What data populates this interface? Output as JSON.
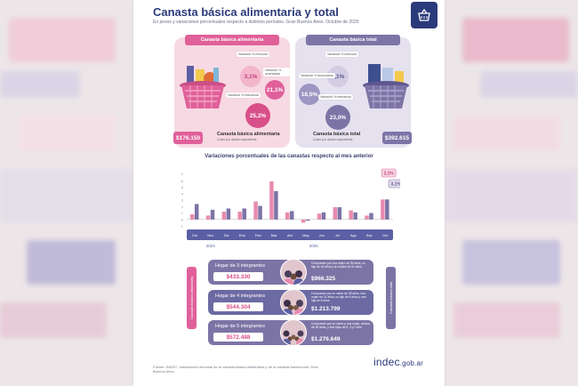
{
  "header": {
    "title": "Canasta básica alimentaria y total",
    "subtitle": "En pesos y variaciones porcentuales respecto a distintos períodos. Gran Buenos Aires. Octubre de 2025",
    "logo_icon": "basket-icon"
  },
  "panels": {
    "cba": {
      "heading": "Canasta básica alimentaria",
      "tag_monthly": "Variación % mensual",
      "tag_ytd": "Variación % acumulada",
      "tag_yoy": "Variación % interanual",
      "monthly": "3,1%",
      "ytd": "21,1%",
      "yoy": "25,2%",
      "value": "$176.150",
      "value_label": "Canasta básica alimentaria",
      "value_note": "Costo por adulto equivalente"
    },
    "cbt": {
      "heading": "Canasta básica total",
      "tag_monthly": "Variación % mensual",
      "tag_ytd": "Variación % acumulada",
      "tag_yoy": "Variación % interanual",
      "monthly": "3,1%",
      "ytd": "18,5%",
      "yoy": "23,0%",
      "value": "$392.615",
      "value_label": "Canasta básica total",
      "value_note": "Costo por adulto equivalente"
    }
  },
  "chart_data": {
    "type": "bar",
    "title": "Variaciones porcentuales de las canastas respecto al mes anterior",
    "categories": [
      "Oct",
      "Nov",
      "Dic",
      "Ene",
      "Feb",
      "Mar",
      "Abr",
      "May",
      "Jun",
      "Jul",
      "Ago",
      "Sep",
      "Oct"
    ],
    "year_labels": [
      "2024",
      "2025"
    ],
    "series": [
      {
        "name": "Canasta básica alimentaria",
        "color": "#e88bb0",
        "values": [
          0.8,
          0.6,
          1.2,
          1.2,
          2.8,
          5.9,
          1.1,
          -0.5,
          0.9,
          1.9,
          1.4,
          0.6,
          3.1
        ]
      },
      {
        "name": "Canasta básica total",
        "color": "#7d74a6",
        "values": [
          2.4,
          1.5,
          1.7,
          1.7,
          2.1,
          4.4,
          1.3,
          -0.2,
          1.1,
          1.9,
          1.1,
          1.0,
          3.1
        ]
      }
    ],
    "callouts": [
      "3,1%",
      "3,1%"
    ],
    "ylim": [
      -1,
      7
    ],
    "yticks": [
      "7",
      "6",
      "5",
      "4",
      "3",
      "2",
      "1",
      "0",
      "-1"
    ]
  },
  "households": {
    "side_left": "Canasta básica alimentaria",
    "side_right": "Canasta básica total",
    "items": [
      {
        "name": "Hogar de 3 integrantes",
        "cba": "$433.330",
        "cbt": "$966.325",
        "desc": "Compuesto por una mujer de 35 años, su hijo de 18 años y su madre de 61 años",
        "color": "#7d74a6"
      },
      {
        "name": "Hogar de 4 integrantes",
        "cba": "$544.304",
        "cbt": "$1.213.799",
        "desc": "Compuesto por un varón de 35 años, una mujer de 31 años, un hijo de 6 años y una hija de 8 años",
        "color": "#6c6aa3"
      },
      {
        "name": "Hogar de 5 integrantes",
        "cba": "$572.488",
        "cbt": "$1.276.649",
        "desc": "Compuesto por un varón y una mujer, ambos de 30 años, y tres hijos de 5, 3 y 1 año",
        "color": "#7d74a6"
      }
    ]
  },
  "footer": {
    "source": "Fuente: INDEC. Valorización mensual de la canasta básica alimentaria y de la canasta básica total. Gran Buenos Aires.",
    "brand": "indec",
    "brand_domain": ".gob.ar"
  }
}
